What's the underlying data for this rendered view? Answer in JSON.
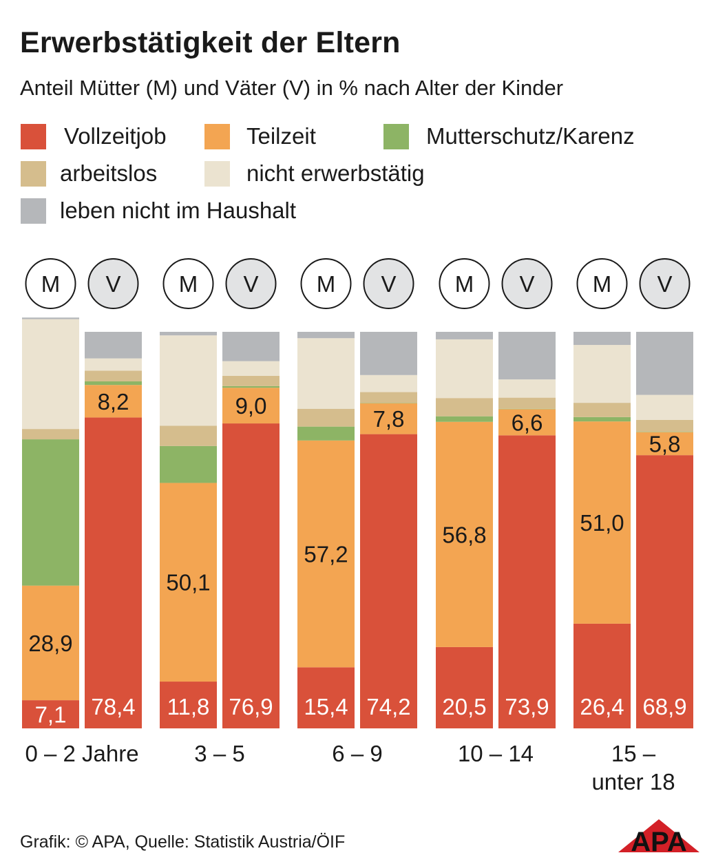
{
  "title": "Erwerbstätigkeit der Eltern",
  "subtitle": "Anteil Mütter (M) und Väter (V) in % nach Alter der Kinder",
  "legend": [
    {
      "key": "vollzeit",
      "label": "Vollzeitjob",
      "color": "#d9513a"
    },
    {
      "key": "teilzeit",
      "label": "Teilzeit",
      "color": "#f3a552"
    },
    {
      "key": "karenz",
      "label": "Mutterschutz/Karenz",
      "color": "#8db465"
    },
    {
      "key": "arbeitslos",
      "label": "arbeitslos",
      "color": "#d5bd8d"
    },
    {
      "key": "nicht",
      "label": "nicht erwerbstätig",
      "color": "#ebe3d0"
    },
    {
      "key": "haushalt",
      "label": "leben nicht im Haushalt",
      "color": "#b5b7ba"
    }
  ],
  "parent_labels": {
    "M": "M",
    "V": "V"
  },
  "source": "Grafik: © APA, Quelle: Statistik Austria/ÖIF",
  "logo_text": "APA",
  "chart_data": {
    "type": "bar",
    "stacked": true,
    "unit": "%",
    "ylim": [
      0,
      100
    ],
    "groups": [
      {
        "label": "0 – 2 Jahre",
        "bars": [
          {
            "parent": "M",
            "values": {
              "vollzeit": 7.1,
              "teilzeit": 28.9,
              "karenz": 36.9,
              "arbeitslos": 2.6,
              "nicht": 27.7,
              "haushalt": 0.4
            }
          },
          {
            "parent": "V",
            "values": {
              "vollzeit": 78.4,
              "teilzeit": 8.2,
              "karenz": 0.9,
              "arbeitslos": 2.7,
              "nicht": 3.1,
              "haushalt": 6.7
            }
          }
        ]
      },
      {
        "label": "3 – 5",
        "bars": [
          {
            "parent": "M",
            "values": {
              "vollzeit": 11.8,
              "teilzeit": 50.1,
              "karenz": 9.3,
              "arbeitslos": 5.1,
              "nicht": 22.8,
              "haushalt": 0.9
            }
          },
          {
            "parent": "V",
            "values": {
              "vollzeit": 76.9,
              "teilzeit": 9.0,
              "karenz": 0.4,
              "arbeitslos": 2.6,
              "nicht": 3.7,
              "haushalt": 7.4
            }
          }
        ]
      },
      {
        "label": "6 – 9",
        "bars": [
          {
            "parent": "M",
            "values": {
              "vollzeit": 15.4,
              "teilzeit": 57.2,
              "karenz": 3.5,
              "arbeitslos": 4.5,
              "nicht": 17.8,
              "haushalt": 1.6
            }
          },
          {
            "parent": "V",
            "values": {
              "vollzeit": 74.2,
              "teilzeit": 7.8,
              "karenz": 0.1,
              "arbeitslos": 2.7,
              "nicht": 4.3,
              "haushalt": 10.9
            }
          }
        ]
      },
      {
        "label": "10 – 14",
        "bars": [
          {
            "parent": "M",
            "values": {
              "vollzeit": 20.5,
              "teilzeit": 56.8,
              "karenz": 1.4,
              "arbeitslos": 4.6,
              "nicht": 14.8,
              "haushalt": 1.9
            }
          },
          {
            "parent": "V",
            "values": {
              "vollzeit": 73.9,
              "teilzeit": 6.6,
              "karenz": 0.1,
              "arbeitslos": 2.8,
              "nicht": 4.6,
              "haushalt": 12.0
            }
          }
        ]
      },
      {
        "label": "15 – unter 18",
        "bars": [
          {
            "parent": "M",
            "values": {
              "vollzeit": 26.4,
              "teilzeit": 51.0,
              "karenz": 1.1,
              "arbeitslos": 3.6,
              "nicht": 14.6,
              "haushalt": 3.3
            }
          },
          {
            "parent": "V",
            "values": {
              "vollzeit": 68.9,
              "teilzeit": 5.8,
              "karenz": 0.1,
              "arbeitslos": 3.0,
              "nicht": 6.3,
              "haushalt": 15.9
            }
          }
        ]
      }
    ]
  }
}
